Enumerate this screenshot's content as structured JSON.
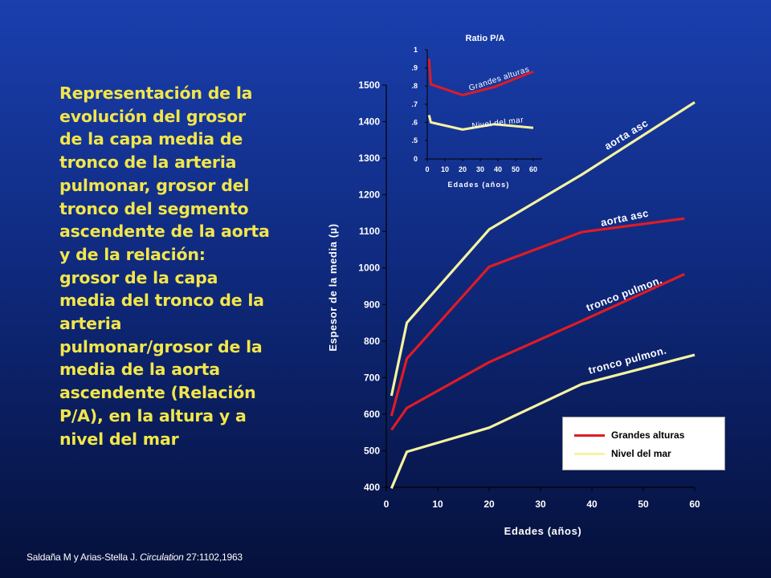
{
  "slide": {
    "description": "Representación de la evolución del grosor de la capa media de tronco de la arteria pulmonar, grosor del tronco del segmento ascendente de la aorta y de la relación: grosor de la capa media del tronco de la arteria pulmonar/grosor de la media de la aorta ascendente (Relación P/A), en la altura y a nivel del mar",
    "citation_authors": "Saldaña M y Arias-Stella J.",
    "citation_journal": "Circulation",
    "citation_ref": "27:1102,1963"
  },
  "colors": {
    "red": "#e01b24",
    "yellow": "#f5f3a0"
  },
  "chart_data": [
    {
      "type": "line",
      "title": "",
      "xlabel": "Edades (años)",
      "ylabel": "Espesor de la media (µ)",
      "xlim": [
        0,
        60
      ],
      "ylim": [
        400,
        1500
      ],
      "x_ticks": [
        0,
        10,
        20,
        30,
        40,
        50,
        60
      ],
      "y_ticks": [
        400,
        500,
        600,
        700,
        800,
        900,
        1000,
        1100,
        1200,
        1300,
        1400,
        1500
      ],
      "legend": [
        {
          "name": "Grandes alturas",
          "color": "red"
        },
        {
          "name": "Nivel del mar",
          "color": "yellow"
        }
      ],
      "series": [
        {
          "label": "aorta asc",
          "group": "Nivel del mar",
          "color": "yellow",
          "x": [
            1,
            4,
            20,
            38,
            60
          ],
          "y": [
            650,
            850,
            1105,
            1255,
            1453
          ]
        },
        {
          "label": "aorta asc",
          "group": "Grandes alturas",
          "color": "red",
          "x": [
            1,
            4,
            20,
            38,
            58
          ],
          "y": [
            595,
            752,
            1003,
            1098,
            1135
          ]
        },
        {
          "label": "tronco pulmon.",
          "group": "Grandes alturas",
          "color": "red",
          "x": [
            1,
            4,
            20,
            38,
            58
          ],
          "y": [
            557,
            617,
            742,
            855,
            983
          ]
        },
        {
          "label": "tronco pulmon.",
          "group": "Nivel del mar",
          "color": "yellow",
          "x": [
            1,
            4,
            20,
            38,
            60
          ],
          "y": [
            397,
            497,
            563,
            682,
            762
          ]
        }
      ]
    },
    {
      "type": "line",
      "title": "Ratio P/A",
      "xlabel": "Edades (años)",
      "ylabel": "",
      "xlim": [
        0,
        65
      ],
      "ylim": [
        0,
        1
      ],
      "x_ticks": [
        0,
        10,
        20,
        30,
        40,
        50,
        60
      ],
      "y_ticks": [
        0,
        0.5,
        0.6,
        0.7,
        0.8,
        0.9,
        1
      ],
      "y_tick_labels": [
        "0",
        ".5",
        ".6",
        ".7",
        ".8",
        ".9",
        "1"
      ],
      "series": [
        {
          "label": "Grandes alturas",
          "color": "red",
          "x": [
            1,
            2,
            20,
            38,
            60
          ],
          "y": [
            0.95,
            0.81,
            0.75,
            0.795,
            0.88
          ]
        },
        {
          "label": "Nivel del mar",
          "color": "yellow",
          "x": [
            1,
            2,
            20,
            38,
            60
          ],
          "y": [
            0.64,
            0.6,
            0.56,
            0.59,
            0.57
          ]
        }
      ]
    }
  ]
}
